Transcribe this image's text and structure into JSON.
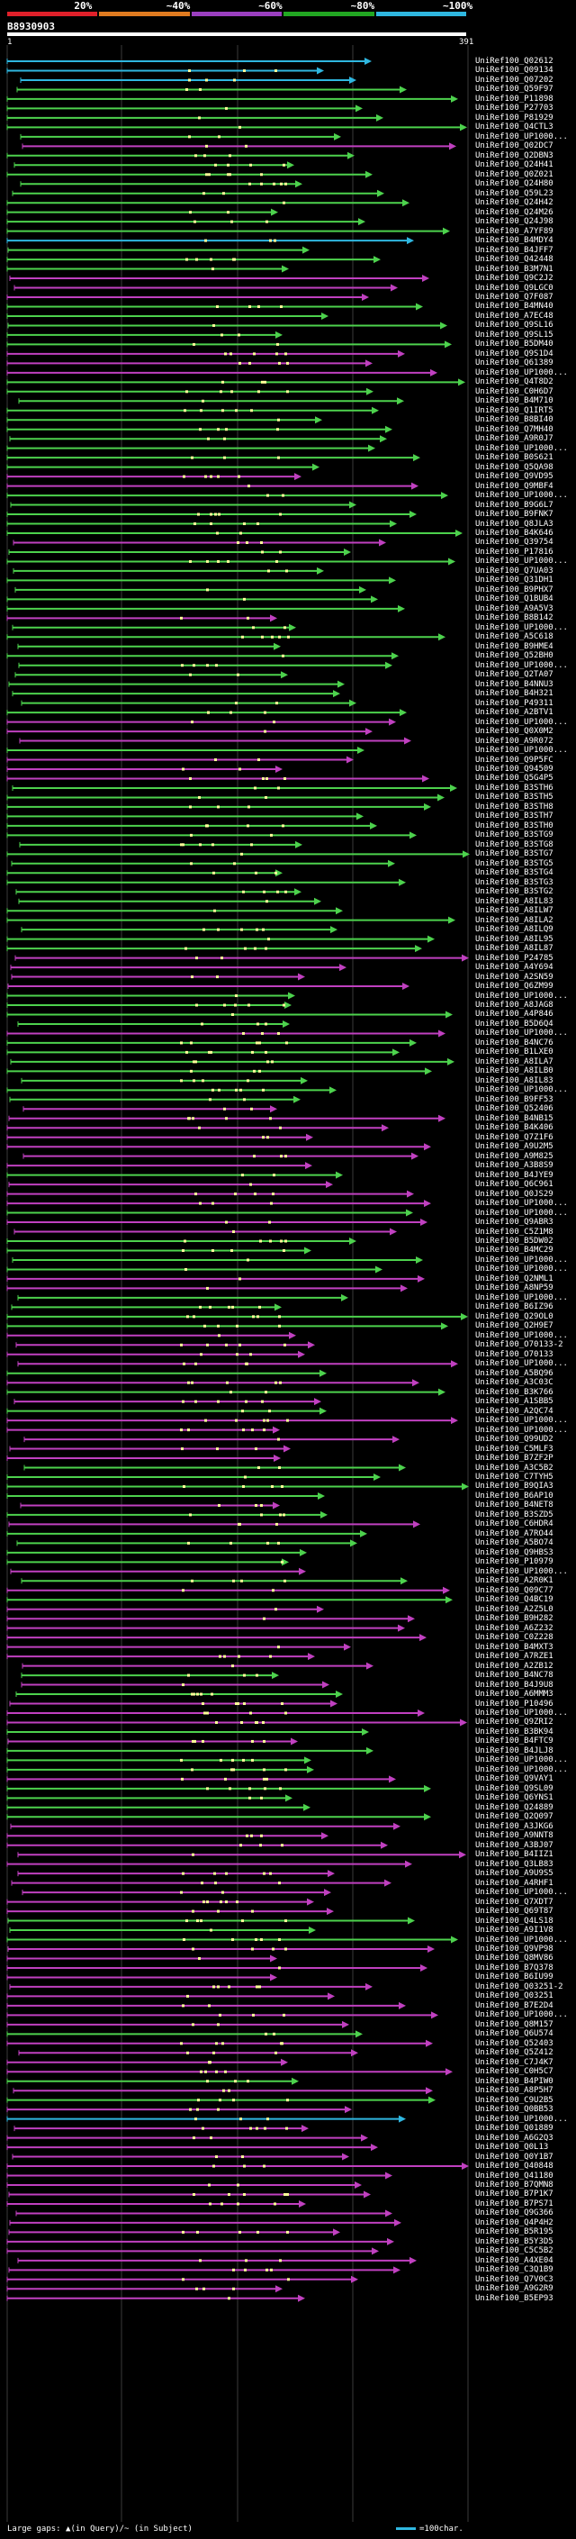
{
  "legend": {
    "labels": [
      "20%",
      "~40%",
      "~60%",
      "~80%",
      "~100%"
    ],
    "colors": [
      "#e0202a",
      "#e07b20",
      "#9b3fc0",
      "#22a722",
      "#2fb7e0"
    ]
  },
  "query": {
    "id": "B8930903",
    "start": "1",
    "end": "391"
  },
  "colors": {
    "purple": "#c040c0",
    "green": "#4dd24d",
    "cyan": "#2fb7e0",
    "grid": "#3a3a3a",
    "dot": "#ffff99"
  },
  "footer": {
    "left": "Large gaps: ▲(in Query)/~ (in Subject)",
    "right": "=100char."
  },
  "hits": [
    {
      "label": "UniRef100_Q02612",
      "color": "cyan"
    },
    {
      "label": "UniRef100_Q09134",
      "color": "cyan"
    },
    {
      "label": "UniRef100_Q07202",
      "color": "cyan"
    },
    {
      "label": "UniRef100_Q59F97",
      "color": "green"
    },
    {
      "label": "UniRef100_P11898",
      "color": "green"
    },
    {
      "label": "UniRef100_P27703",
      "color": "green"
    },
    {
      "label": "UniRef100_P81929",
      "color": "green"
    },
    {
      "label": "UniRef100_Q4CTL3",
      "color": "green"
    },
    {
      "label": "UniRef100_UP1000...",
      "color": "green"
    },
    {
      "label": "UniRef100_Q02DC7",
      "color": "purple"
    },
    {
      "label": "UniRef100_Q2DBN3",
      "color": "green"
    },
    {
      "label": "UniRef100_Q24H41",
      "color": "green"
    },
    {
      "label": "UniRef100_Q0Z021",
      "color": "green"
    },
    {
      "label": "UniRef100_Q24H80",
      "color": "green"
    },
    {
      "label": "UniRef100_Q59L23",
      "color": "green"
    },
    {
      "label": "UniRef100_Q24H42",
      "color": "green"
    },
    {
      "label": "UniRef100_Q24M26",
      "color": "green"
    },
    {
      "label": "UniRef100_Q24J98",
      "color": "green"
    },
    {
      "label": "UniRef100_A7YF89",
      "color": "green"
    },
    {
      "label": "UniRef100_B4MDY4",
      "color": "cyan"
    },
    {
      "label": "UniRef100_B4JFF7",
      "color": "green"
    },
    {
      "label": "UniRef100_Q42448",
      "color": "green"
    },
    {
      "label": "UniRef100_B3M7N1",
      "color": "green"
    },
    {
      "label": "UniRef100_Q9C2J2",
      "color": "purple"
    },
    {
      "label": "UniRef100_Q9LGC0",
      "color": "purple"
    },
    {
      "label": "UniRef100_Q7F087",
      "color": "purple"
    },
    {
      "label": "UniRef100_B4MN40",
      "color": "green"
    },
    {
      "label": "UniRef100_A7EC48",
      "color": "green"
    },
    {
      "label": "UniRef100_Q9SL16",
      "color": "green"
    },
    {
      "label": "UniRef100_Q9SL15",
      "color": "green"
    },
    {
      "label": "UniRef100_B5DM40",
      "color": "green"
    },
    {
      "label": "UniRef100_Q9S1D4",
      "color": "purple"
    },
    {
      "label": "UniRef100_Q61389",
      "color": "purple"
    },
    {
      "label": "UniRef100_UP1000...",
      "color": "purple"
    },
    {
      "label": "UniRef100_Q4T8D2",
      "color": "green"
    },
    {
      "label": "UniRef100_C0H6D7",
      "color": "green"
    },
    {
      "label": "UniRef100_B4M710",
      "color": "green"
    },
    {
      "label": "UniRef100_Q1IRT5",
      "color": "green"
    },
    {
      "label": "UniRef100_B8BI40",
      "color": "green"
    },
    {
      "label": "UniRef100_Q7MH40",
      "color": "green"
    },
    {
      "label": "UniRef100_A9R0J7",
      "color": "green"
    },
    {
      "label": "UniRef100_UP1000...",
      "color": "green"
    },
    {
      "label": "UniRef100_B0S621",
      "color": "green"
    },
    {
      "label": "UniRef100_Q5QA98",
      "color": "green"
    },
    {
      "label": "UniRef100_Q9VD95",
      "color": "purple"
    },
    {
      "label": "UniRef100_Q9MBF4",
      "color": "purple"
    },
    {
      "label": "UniRef100_UP1000...",
      "color": "green"
    },
    {
      "label": "UniRef100_B9G6L7",
      "color": "green"
    },
    {
      "label": "UniRef100_B9FNK7",
      "color": "green"
    },
    {
      "label": "UniRef100_Q8JLA3",
      "color": "green"
    },
    {
      "label": "UniRef100_B4K646",
      "color": "green"
    },
    {
      "label": "UniRef100_Q39754",
      "color": "purple"
    },
    {
      "label": "UniRef100_P17816",
      "color": "green"
    },
    {
      "label": "UniRef100_UP1000...",
      "color": "green"
    },
    {
      "label": "UniRef100_Q7UA03",
      "color": "green"
    },
    {
      "label": "UniRef100_Q31DH1",
      "color": "green"
    },
    {
      "label": "UniRef100_B9PHX7",
      "color": "green"
    },
    {
      "label": "UniRef100_Q1BUB4",
      "color": "green"
    },
    {
      "label": "UniRef100_A9A5V3",
      "color": "green"
    },
    {
      "label": "UniRef100_B8B142",
      "color": "purple"
    },
    {
      "label": "UniRef100_UP1000...",
      "color": "green"
    },
    {
      "label": "UniRef100_A5C618",
      "color": "green"
    },
    {
      "label": "UniRef100_B9HME4",
      "color": "green"
    },
    {
      "label": "UniRef100_Q52BH0",
      "color": "green"
    },
    {
      "label": "UniRef100_UP1000...",
      "color": "green"
    },
    {
      "label": "UniRef100_Q2TA07",
      "color": "green"
    },
    {
      "label": "UniRef100_B4NNU3",
      "color": "green"
    },
    {
      "label": "UniRef100_B4H321",
      "color": "green"
    },
    {
      "label": "UniRef100_P49311",
      "color": "green"
    },
    {
      "label": "UniRef100_A2BTV1",
      "color": "green"
    },
    {
      "label": "UniRef100_UP1000...",
      "color": "purple"
    },
    {
      "label": "UniRef100_Q0X0M2",
      "color": "purple"
    },
    {
      "label": "UniRef100_A9R072",
      "color": "purple"
    },
    {
      "label": "UniRef100_UP1000...",
      "color": "green"
    },
    {
      "label": "UniRef100_Q9P5FC",
      "color": "purple"
    },
    {
      "label": "UniRef100_Q94509",
      "color": "purple"
    },
    {
      "label": "UniRef100_Q5G4P5",
      "color": "purple"
    },
    {
      "label": "UniRef100_B3STH6",
      "color": "green"
    },
    {
      "label": "UniRef100_B3STH5",
      "color": "green"
    },
    {
      "label": "UniRef100_B3STH8",
      "color": "green"
    },
    {
      "label": "UniRef100_B3STH7",
      "color": "green"
    },
    {
      "label": "UniRef100_B3STH0",
      "color": "green"
    },
    {
      "label": "UniRef100_B3STG9",
      "color": "green"
    },
    {
      "label": "UniRef100_B3STG8",
      "color": "green"
    },
    {
      "label": "UniRef100_B3STG7",
      "color": "green"
    },
    {
      "label": "UniRef100_B3STG5",
      "color": "green"
    },
    {
      "label": "UniRef100_B3STG4",
      "color": "green"
    },
    {
      "label": "UniRef100_B3STG3",
      "color": "green"
    },
    {
      "label": "UniRef100_B3STG2",
      "color": "green"
    },
    {
      "label": "UniRef100_A8IL83",
      "color": "green"
    },
    {
      "label": "UniRef100_A8ILW7",
      "color": "green"
    },
    {
      "label": "UniRef100_A8ILA2",
      "color": "green"
    },
    {
      "label": "UniRef100_A8ILQ9",
      "color": "green"
    },
    {
      "label": "UniRef100_A8IL95",
      "color": "green"
    },
    {
      "label": "UniRef100_A8IL87",
      "color": "green"
    },
    {
      "label": "UniRef100_P24785",
      "color": "purple"
    },
    {
      "label": "UniRef100_A4Y694",
      "color": "purple"
    },
    {
      "label": "UniRef100_A2SN59",
      "color": "purple"
    },
    {
      "label": "UniRef100_Q6ZM99",
      "color": "purple"
    },
    {
      "label": "UniRef100_UP1000...",
      "color": "green"
    },
    {
      "label": "UniRef100_A8JAG8",
      "color": "green"
    },
    {
      "label": "UniRef100_A4P846",
      "color": "green"
    },
    {
      "label": "UniRef100_B5D6Q4",
      "color": "green"
    },
    {
      "label": "UniRef100_UP1000...",
      "color": "purple"
    },
    {
      "label": "UniRef100_B4NC76",
      "color": "green"
    },
    {
      "label": "UniRef100_B1LXE0",
      "color": "green"
    },
    {
      "label": "UniRef100_A8ILA7",
      "color": "green"
    },
    {
      "label": "UniRef100_A8ILB0",
      "color": "green"
    },
    {
      "label": "UniRef100_A8IL83",
      "color": "green"
    },
    {
      "label": "UniRef100_UP1000...",
      "color": "green"
    },
    {
      "label": "UniRef100_B9FF53",
      "color": "green"
    },
    {
      "label": "UniRef100_Q52406",
      "color": "purple"
    },
    {
      "label": "UniRef100_B4NB15",
      "color": "purple"
    },
    {
      "label": "UniRef100_B4K406",
      "color": "purple"
    },
    {
      "label": "UniRef100_Q7Z1F6",
      "color": "purple"
    },
    {
      "label": "UniRef100_A9U2M5",
      "color": "purple"
    },
    {
      "label": "UniRef100_A9M825",
      "color": "purple"
    },
    {
      "label": "UniRef100_A3B8S9",
      "color": "purple"
    },
    {
      "label": "UniRef100_B4JYE9",
      "color": "green"
    },
    {
      "label": "UniRef100_Q6C961",
      "color": "purple"
    },
    {
      "label": "UniRef100_Q0JS29",
      "color": "purple"
    },
    {
      "label": "UniRef100_UP1000...",
      "color": "purple"
    },
    {
      "label": "UniRef100_UP1000...",
      "color": "green"
    },
    {
      "label": "UniRef100_Q9ABR3",
      "color": "purple"
    },
    {
      "label": "UniRef100_C5Z1M8",
      "color": "purple"
    },
    {
      "label": "UniRef100_B5DW02",
      "color": "green"
    },
    {
      "label": "UniRef100_B4MC29",
      "color": "green"
    },
    {
      "label": "UniRef100_UP1000...",
      "color": "green"
    },
    {
      "label": "UniRef100_UP1000...",
      "color": "green"
    },
    {
      "label": "UniRef100_Q2NML1",
      "color": "purple"
    },
    {
      "label": "UniRef100_A8NP59",
      "color": "purple"
    },
    {
      "label": "UniRef100_UP1000...",
      "color": "green"
    },
    {
      "label": "UniRef100_B6IZ96",
      "color": "green"
    },
    {
      "label": "UniRef100_Q29OL0",
      "color": "green"
    },
    {
      "label": "UniRef100_Q2H9E7",
      "color": "green"
    },
    {
      "label": "UniRef100_UP1000...",
      "color": "purple"
    },
    {
      "label": "UniRef100_O70133-2",
      "color": "purple"
    },
    {
      "label": "UniRef100_O70133",
      "color": "purple"
    },
    {
      "label": "UniRef100_UP1000...",
      "color": "purple"
    },
    {
      "label": "UniRef100_A5BQ96",
      "color": "green"
    },
    {
      "label": "UniRef100_A3C03C",
      "color": "purple"
    },
    {
      "label": "UniRef100_B3K766",
      "color": "green"
    },
    {
      "label": "UniRef100_A1SBB5",
      "color": "purple"
    },
    {
      "label": "UniRef100_A2QC74",
      "color": "green"
    },
    {
      "label": "UniRef100_UP1000...",
      "color": "purple"
    },
    {
      "label": "UniRef100_UP1000...",
      "color": "purple"
    },
    {
      "label": "UniRef100_Q99UD2",
      "color": "purple"
    },
    {
      "label": "UniRef100_C5MLF3",
      "color": "purple"
    },
    {
      "label": "UniRef100_B7ZF2P",
      "color": "purple"
    },
    {
      "label": "UniRef100_A3C5B2",
      "color": "green"
    },
    {
      "label": "UniRef100_C7TYH5",
      "color": "green"
    },
    {
      "label": "UniRef100_B9QIA3",
      "color": "green"
    },
    {
      "label": "UniRef100_B6AP10",
      "color": "green"
    },
    {
      "label": "UniRef100_B4NET8",
      "color": "purple"
    },
    {
      "label": "UniRef100_B3SZD5",
      "color": "green"
    },
    {
      "label": "UniRef100_C6HDR4",
      "color": "purple"
    },
    {
      "label": "UniRef100_A7RO44",
      "color": "green"
    },
    {
      "label": "UniRef100_A5BO74",
      "color": "green"
    },
    {
      "label": "UniRef100_Q9HBS3",
      "color": "green"
    },
    {
      "label": "UniRef100_P10979",
      "color": "green"
    },
    {
      "label": "UniRef100_UP1000...",
      "color": "purple"
    },
    {
      "label": "UniRef100_A2R0K1",
      "color": "green"
    },
    {
      "label": "UniRef100_Q09C77",
      "color": "purple"
    },
    {
      "label": "UniRef100_Q4BC19",
      "color": "green"
    },
    {
      "label": "UniRef100_A2Z5L0",
      "color": "purple"
    },
    {
      "label": "UniRef100_B9H282",
      "color": "purple"
    },
    {
      "label": "UniRef100_A6Z232",
      "color": "purple"
    },
    {
      "label": "UniRef100_C0Z228",
      "color": "purple"
    },
    {
      "label": "UniRef100_B4MXT3",
      "color": "purple"
    },
    {
      "label": "UniRef100_A7RZE1",
      "color": "purple"
    },
    {
      "label": "UniRef100_A2ZB12",
      "color": "purple"
    },
    {
      "label": "UniRef100_B4NC78",
      "color": "green"
    },
    {
      "label": "UniRef100_B4J9U8",
      "color": "purple"
    },
    {
      "label": "UniRef100_A6MMM3",
      "color": "green"
    },
    {
      "label": "UniRef100_P10496",
      "color": "purple"
    },
    {
      "label": "UniRef100_UP1000...",
      "color": "purple"
    },
    {
      "label": "UniRef100_Q9ZRI2",
      "color": "purple"
    },
    {
      "label": "UniRef100_B3BK94",
      "color": "green"
    },
    {
      "label": "UniRef100_B4FTC9",
      "color": "purple"
    },
    {
      "label": "UniRef100_B4JLJ8",
      "color": "green"
    },
    {
      "label": "UniRef100_UP1000...",
      "color": "green"
    },
    {
      "label": "UniRef100_UP1000...",
      "color": "green"
    },
    {
      "label": "UniRef100_Q9VAY1",
      "color": "purple"
    },
    {
      "label": "UniRef100_Q9SL09",
      "color": "green"
    },
    {
      "label": "UniRef100_Q6YNS1",
      "color": "green"
    },
    {
      "label": "UniRef100_Q24889",
      "color": "green"
    },
    {
      "label": "UniRef100_Q2Q097",
      "color": "green"
    },
    {
      "label": "UniRef100_A3JKG6",
      "color": "purple"
    },
    {
      "label": "UniRef100_A9NNT8",
      "color": "purple"
    },
    {
      "label": "UniRef100_A3BJ07",
      "color": "purple"
    },
    {
      "label": "UniRef100_B4IIZ1",
      "color": "purple"
    },
    {
      "label": "UniRef100_Q3LB83",
      "color": "purple"
    },
    {
      "label": "UniRef100_A9U9S5",
      "color": "purple"
    },
    {
      "label": "UniRef100_A4RHF1",
      "color": "purple"
    },
    {
      "label": "UniRef100_UP1000...",
      "color": "purple"
    },
    {
      "label": "UniRef100_Q7XDT7",
      "color": "purple"
    },
    {
      "label": "UniRef100_Q69T87",
      "color": "purple"
    },
    {
      "label": "UniRef100_Q4LS18",
      "color": "green"
    },
    {
      "label": "UniRef100_A9I1V8",
      "color": "green"
    },
    {
      "label": "UniRef100_UP1000...",
      "color": "green"
    },
    {
      "label": "UniRef100_Q9VP98",
      "color": "purple"
    },
    {
      "label": "UniRef100_Q8MV86",
      "color": "purple"
    },
    {
      "label": "UniRef100_B7Q378",
      "color": "purple"
    },
    {
      "label": "UniRef100_B6IU99",
      "color": "purple"
    },
    {
      "label": "UniRef100_Q03251-2",
      "color": "purple"
    },
    {
      "label": "UniRef100_Q03251",
      "color": "purple"
    },
    {
      "label": "UniRef100_B7E2D4",
      "color": "purple"
    },
    {
      "label": "UniRef100_UP1000...",
      "color": "purple"
    },
    {
      "label": "UniRef100_Q8M157",
      "color": "purple"
    },
    {
      "label": "UniRef100_Q6U574",
      "color": "green"
    },
    {
      "label": "UniRef100_Q52403",
      "color": "purple"
    },
    {
      "label": "UniRef100_Q5Z412",
      "color": "purple"
    },
    {
      "label": "UniRef100_C7J4K7",
      "color": "purple"
    },
    {
      "label": "UniRef100_C0H5C7",
      "color": "purple"
    },
    {
      "label": "UniRef100_B4PIW0",
      "color": "green"
    },
    {
      "label": "UniRef100_A8P5H7",
      "color": "purple"
    },
    {
      "label": "UniRef100_C9U2B5",
      "color": "green"
    },
    {
      "label": "UniRef100_Q0BB53",
      "color": "purple"
    },
    {
      "label": "UniRef100_UP1000...",
      "color": "cyan"
    },
    {
      "label": "UniRef100_Q01889",
      "color": "purple"
    },
    {
      "label": "UniRef100_A6G2Q3",
      "color": "purple"
    },
    {
      "label": "UniRef100_Q0L13",
      "color": "purple"
    },
    {
      "label": "UniRef100_Q0Y1B7",
      "color": "purple"
    },
    {
      "label": "UniRef100_Q40848",
      "color": "purple"
    },
    {
      "label": "UniRef100_Q41180",
      "color": "purple"
    },
    {
      "label": "UniRef100_B7QMN8",
      "color": "purple"
    },
    {
      "label": "UniRef100_B7P1K7",
      "color": "purple"
    },
    {
      "label": "UniRef100_B7PS71",
      "color": "purple"
    },
    {
      "label": "UniRef100_Q9G366",
      "color": "purple"
    },
    {
      "label": "UniRef100_Q4P4H2",
      "color": "purple"
    },
    {
      "label": "UniRef100_B5R195",
      "color": "purple"
    },
    {
      "label": "UniRef100_B5Y3D5",
      "color": "purple"
    },
    {
      "label": "UniRef100_C5C5B2",
      "color": "purple"
    },
    {
      "label": "UniRef100_A4XE04",
      "color": "purple"
    },
    {
      "label": "UniRef100_C3Q1B9",
      "color": "purple"
    },
    {
      "label": "UniRef100_Q7V0C3",
      "color": "purple"
    },
    {
      "label": "UniRef100_A9G2R9",
      "color": "purple"
    },
    {
      "label": "UniRef100_B5EP93",
      "color": "purple"
    }
  ]
}
